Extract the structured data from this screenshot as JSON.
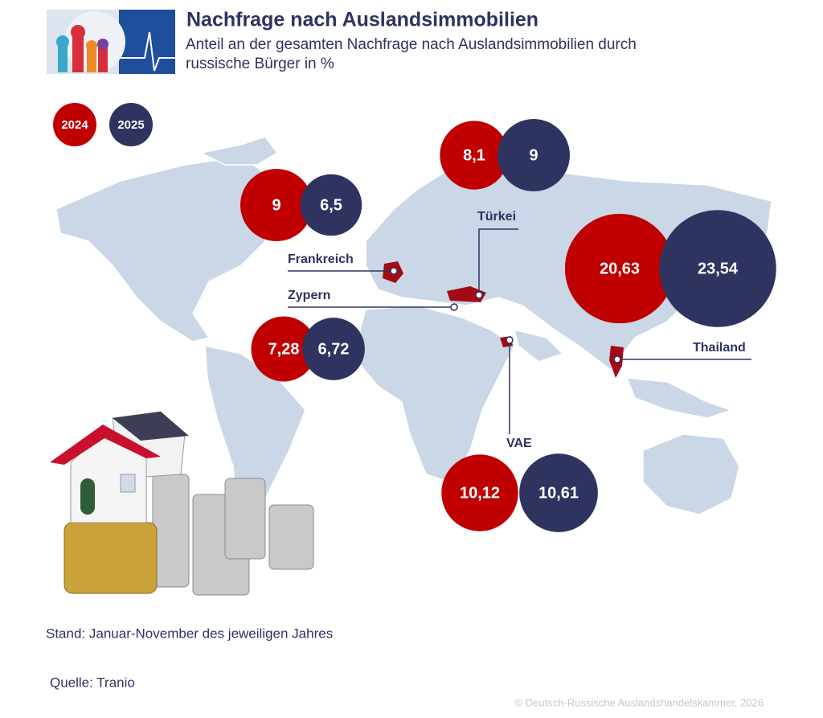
{
  "chart_data": {
    "type": "bubble-map",
    "title": "Nachfrage nach Auslandsimmobilien",
    "subtitle": "Anteil an der gesamten Nachfrage nach Auslandsimmobilien durch russische Bürger in %",
    "categories": [
      "Frankreich",
      "Zypern",
      "Türkei",
      "Thailand",
      "VAE"
    ],
    "series": [
      {
        "name": "2024",
        "color": "#c00000",
        "values": [
          9,
          7.28,
          8.1,
          20.63,
          10.12
        ],
        "value_labels": [
          "9",
          "7,28",
          "8,1",
          "20,63",
          "10,12"
        ]
      },
      {
        "name": "2025",
        "color": "#2e3360",
        "values": [
          6.5,
          6.72,
          9,
          23.54,
          10.61
        ],
        "value_labels": [
          "6,5",
          "6,72",
          "9",
          "23,54",
          "10,61"
        ]
      }
    ],
    "note": "Stand: Januar-November des jeweiligen Jahres",
    "source": "Quelle: Tranio",
    "copyright": "© Deutsch-Russische Auslandshandelskammer, 2026"
  }
}
